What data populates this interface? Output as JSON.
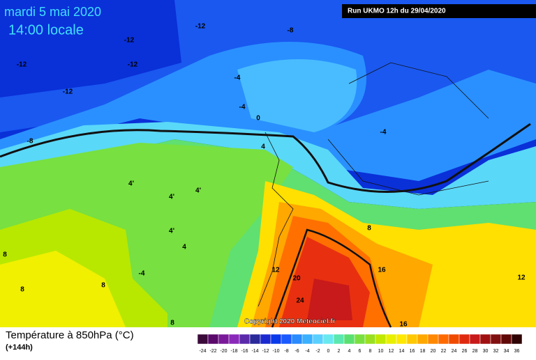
{
  "header": {
    "date": "mardi 5 mai 2020",
    "time": "14:00 locale",
    "run": "Run UKMO 12h du 29/04/2020"
  },
  "map": {
    "copyright": "Copyright 2020 Meteociel.fr",
    "contour_labels": [
      "-12",
      "-12",
      "-12",
      "-12",
      "-12",
      "-8",
      "-8",
      "-4",
      "-4",
      "-4",
      "0",
      "4",
      "4'",
      "4'",
      "4'",
      "4'",
      "4",
      "-4",
      "8",
      "8",
      "8",
      "8",
      "8",
      "12",
      "12",
      "16",
      "16",
      "20",
      "24"
    ]
  },
  "footer": {
    "title": "Température à 850hPa (°C)",
    "lead": "(+144h)"
  },
  "legend": {
    "labels": [
      -24,
      -22,
      -20,
      -18,
      -16,
      -14,
      -12,
      -10,
      -8,
      -6,
      -4,
      -2,
      0,
      2,
      4,
      6,
      8,
      10,
      12,
      14,
      16,
      18,
      20,
      22,
      24,
      26,
      28,
      30,
      32,
      34,
      36
    ],
    "colors": [
      "#3a0a3a",
      "#5a0a6a",
      "#7a1a9a",
      "#8a2aba",
      "#5a2aaa",
      "#2a2a9a",
      "#1a2ad0",
      "#0a3aea",
      "#1a5aff",
      "#2a8aff",
      "#3ab0ff",
      "#5ad0ff",
      "#6ae8f0",
      "#5ae8b0",
      "#5ae070",
      "#7ae040",
      "#9ae020",
      "#c0e800",
      "#e8f000",
      "#ffe800",
      "#ffc800",
      "#ffa800",
      "#ff8800",
      "#ff6a00",
      "#f04a00",
      "#e02a10",
      "#c81a1a",
      "#a01010",
      "#801010",
      "#600808",
      "#300404"
    ]
  }
}
